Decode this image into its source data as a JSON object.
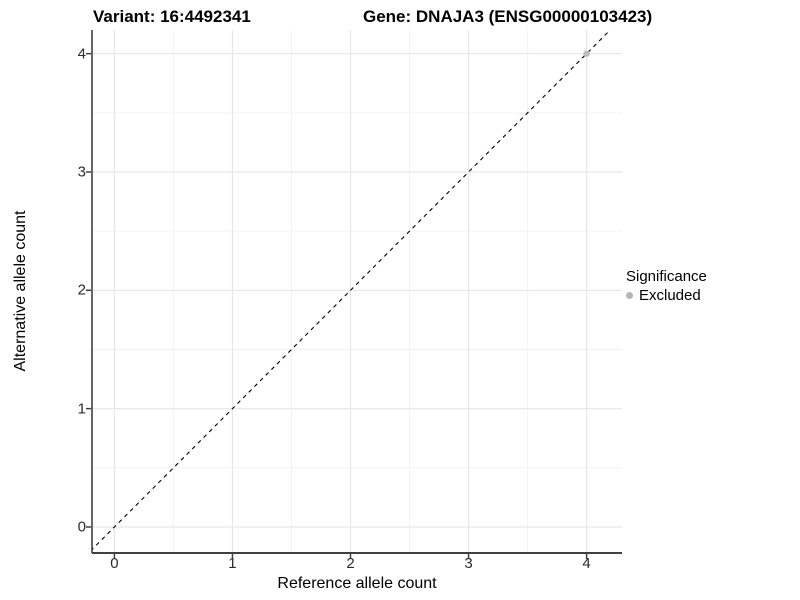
{
  "colors": {
    "point": "#bdbdbd",
    "legend_dot": "#b5b5b5",
    "grid_major": "#e7e7e7",
    "grid_minor": "#f3f3f3",
    "axis_line": "#404040",
    "diagonal": "#000000"
  },
  "chart_data": {
    "type": "scatter",
    "title_left": "Variant: 16:4492341",
    "title_right": "Gene: DNAJA3 (ENSG00000103423)",
    "xlabel": "Reference allele count",
    "ylabel": "Alternative allele count",
    "xlim": [
      -0.19,
      4.3
    ],
    "ylim": [
      -0.22,
      4.2
    ],
    "x_ticks": [
      0,
      1,
      2,
      3,
      4
    ],
    "y_ticks": [
      0,
      1,
      2,
      3,
      4
    ],
    "x_minor_ticks": [
      0.5,
      1.5,
      2.5,
      3.5
    ],
    "y_minor_ticks": [
      0.5,
      1.5,
      2.5,
      3.5
    ],
    "grid": true,
    "diagonal_line": {
      "style": "dashed",
      "from": [
        -0.25,
        -0.25
      ],
      "to": [
        4.4,
        4.4
      ]
    },
    "legend": {
      "title": "Significance",
      "position": "right",
      "entries": [
        {
          "label": "Excluded"
        }
      ]
    },
    "series": [
      {
        "name": "Excluded",
        "points": [
          {
            "x": 4,
            "y": 4
          }
        ]
      }
    ]
  }
}
